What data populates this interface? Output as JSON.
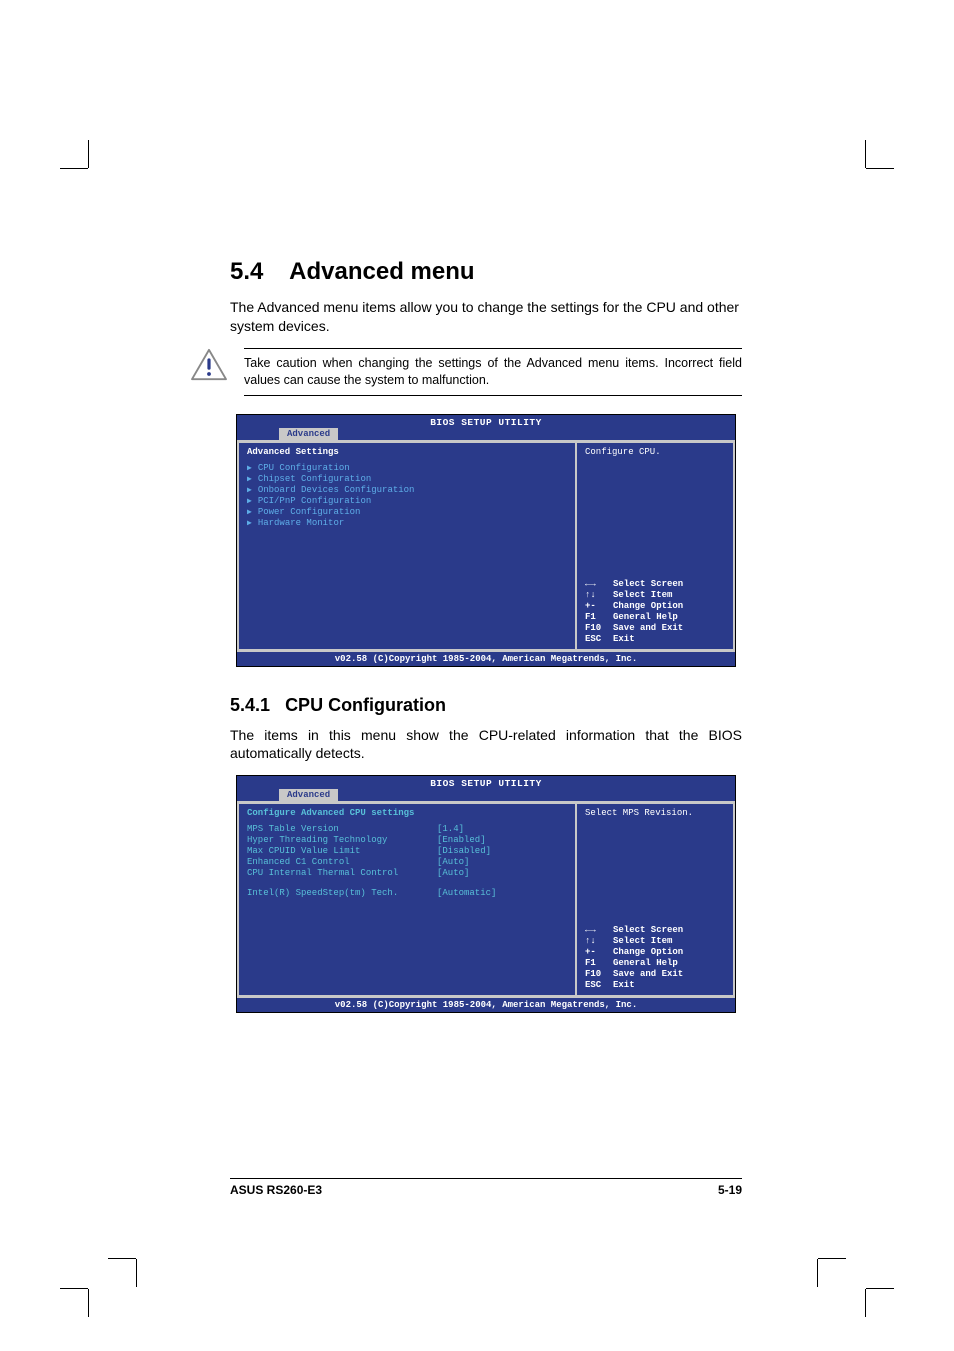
{
  "section": {
    "number": "5.4",
    "title": "Advanced menu"
  },
  "intro": "The Advanced menu items allow you to change the settings for the CPU and other system devices.",
  "caution": "Take caution when changing the settings of the Advanced menu items. Incorrect field values can cause the system to malfunction.",
  "bios_common": {
    "title": "BIOS SETUP UTILITY",
    "tab": "Advanced",
    "footer": "v02.58 (C)Copyright 1985-2004, American Megatrends, Inc.",
    "nav": [
      {
        "key": "←→",
        "label": "Select Screen"
      },
      {
        "key": "↑↓",
        "label": "Select Item"
      },
      {
        "key": "+-",
        "label": "Change Option"
      },
      {
        "key": "F1",
        "label": "General Help"
      },
      {
        "key": "F10",
        "label": "Save and Exit"
      },
      {
        "key": "ESC",
        "label": "Exit"
      }
    ]
  },
  "bios_advanced": {
    "heading": "Advanced Settings",
    "help": "Configure CPU.",
    "items": [
      "CPU Configuration",
      "Chipset Configuration",
      "Onboard Devices Configuration",
      "PCI/PnP Configuration",
      "Power Configuration",
      "Hardware Monitor"
    ],
    "colors": {
      "bg": "#2a3a8a",
      "item": "#5eaee8",
      "text": "#ffffff",
      "tab_bg": "#c8c8c8"
    }
  },
  "subsection": {
    "number": "5.4.1",
    "title": "CPU Configuration"
  },
  "sub_intro": "The items in this menu show the CPU-related information that the BIOS automatically detects.",
  "bios_cpu": {
    "heading": "Configure Advanced CPU settings",
    "help": "Select MPS Revision.",
    "rows": [
      {
        "label": "MPS Table Version",
        "value": "[1.4]"
      },
      {
        "label": "Hyper Threading Technology",
        "value": "[Enabled]"
      },
      {
        "label": "Max CPUID Value Limit",
        "value": "[Disabled]"
      },
      {
        "label": "Enhanced C1 Control",
        "value": "[Auto]"
      },
      {
        "label": "CPU Internal Thermal Control",
        "value": "[Auto]"
      }
    ],
    "extra_row": {
      "label": "Intel(R) SpeedStep(tm) Tech.",
      "value": "[Automatic]"
    }
  },
  "footer": {
    "left": "ASUS RS260-E3",
    "right": "5-19"
  }
}
